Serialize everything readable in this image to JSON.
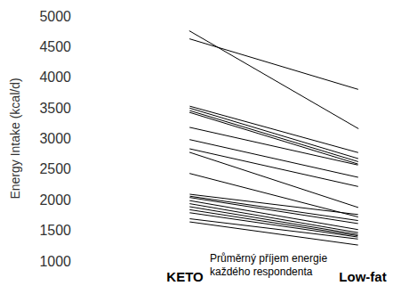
{
  "chart_data": {
    "type": "line",
    "y_label": "Energy Intake (kcal/d)",
    "annotation": "Průměrný příjem energie\nkaždého respondenta",
    "categories": [
      "KETO",
      "Low-fat"
    ],
    "color": "#000000",
    "marker": "circle",
    "grid": false,
    "ylim": [
      1000,
      5000
    ],
    "yticks": [
      1000,
      1500,
      2000,
      2500,
      3000,
      3500,
      4000,
      4500,
      5000
    ],
    "series": [
      {
        "values": [
          4800,
          3120
        ]
      },
      {
        "values": [
          4650,
          3780
        ]
      },
      {
        "values": [
          3550,
          2750
        ]
      },
      {
        "values": [
          3520,
          2650
        ]
      },
      {
        "values": [
          3480,
          2600
        ]
      },
      {
        "values": [
          3450,
          2560
        ]
      },
      {
        "values": [
          3200,
          2550
        ]
      },
      {
        "values": [
          3000,
          2350
        ]
      },
      {
        "values": [
          2850,
          2200
        ]
      },
      {
        "values": [
          2800,
          1850
        ]
      },
      {
        "values": [
          2450,
          1700
        ]
      },
      {
        "values": [
          2100,
          1750
        ]
      },
      {
        "values": [
          2070,
          1650
        ]
      },
      {
        "values": [
          2050,
          1600
        ]
      },
      {
        "values": [
          2000,
          1500
        ]
      },
      {
        "values": [
          1950,
          1450
        ]
      },
      {
        "values": [
          1900,
          1420
        ]
      },
      {
        "values": [
          1850,
          1400
        ]
      },
      {
        "values": [
          1800,
          1380
        ]
      },
      {
        "values": [
          1700,
          1350
        ]
      },
      {
        "values": [
          1650,
          1250
        ]
      }
    ]
  }
}
